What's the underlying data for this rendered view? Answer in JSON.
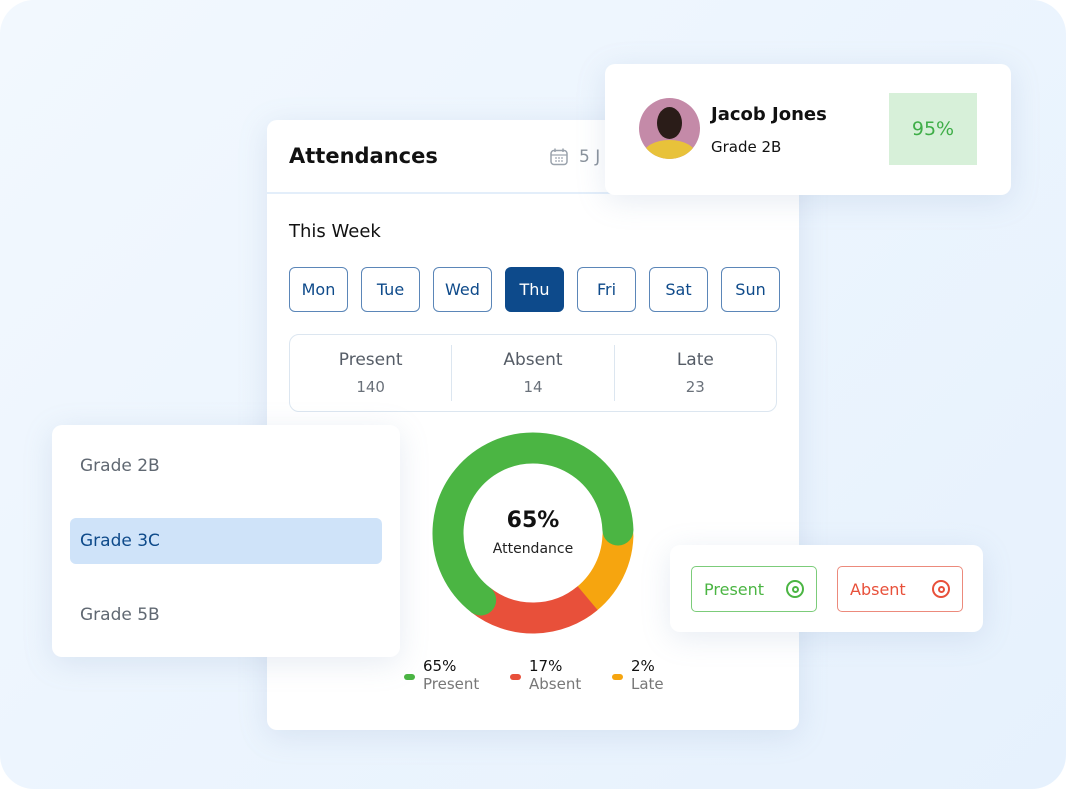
{
  "attendance": {
    "title": "Attendances",
    "date_partial": "5 J",
    "week_label": "This Week",
    "days": [
      {
        "label": "Mon",
        "selected": false
      },
      {
        "label": "Tue",
        "selected": false
      },
      {
        "label": "Wed",
        "selected": false
      },
      {
        "label": "Thu",
        "selected": true
      },
      {
        "label": "Fri",
        "selected": false
      },
      {
        "label": "Sat",
        "selected": false
      },
      {
        "label": "Sun",
        "selected": false
      }
    ],
    "stats": [
      {
        "label": "Present",
        "value": "140"
      },
      {
        "label": "Absent",
        "value": "14"
      },
      {
        "label": "Late",
        "value": "23"
      }
    ],
    "center_value": "65%",
    "center_label": "Attendance",
    "legend": [
      {
        "percent": "65%",
        "label": "Present",
        "color": "#4bb543"
      },
      {
        "percent": "17%",
        "label": "Absent",
        "color": "#e8503a"
      },
      {
        "percent": "2%",
        "label": "Late",
        "color": "#f6a50f"
      }
    ]
  },
  "student": {
    "name": "Jacob Jones",
    "grade": "Grade 2B",
    "percent": "95%"
  },
  "grades": [
    {
      "label": "Grade 2B",
      "selected": false
    },
    {
      "label": "Grade 3C",
      "selected": true
    },
    {
      "label": "Grade 5B",
      "selected": false
    }
  ],
  "mark_buttons": {
    "present": "Present",
    "absent": "Absent",
    "present_color": "#4bb543",
    "absent_color": "#e8503a"
  }
}
